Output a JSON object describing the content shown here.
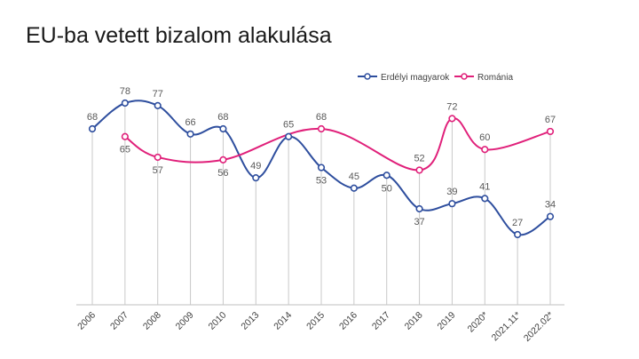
{
  "chart_data": {
    "type": "line",
    "title": "EU-ba vetett bizalom alakulása",
    "categories": [
      "2006",
      "2007",
      "2008",
      "2009",
      "2010",
      "2013",
      "2014",
      "2015",
      "2016",
      "2017",
      "2018",
      "2019",
      "2020*",
      "2021.11*",
      "2022.02*"
    ],
    "series": [
      {
        "name": "Erdélyi magyarok",
        "color": "#2E4E9E",
        "values": [
          68,
          78,
          77,
          66,
          68,
          49,
          65,
          53,
          45,
          50,
          37,
          39,
          41,
          27,
          34
        ]
      },
      {
        "name": "Románia",
        "color": "#E0207A",
        "values": [
          null,
          65,
          57,
          null,
          56,
          null,
          null,
          68,
          null,
          null,
          52,
          72,
          60,
          null,
          67
        ]
      }
    ],
    "legend_position": "top-right",
    "grid": "vertical drop lines"
  }
}
